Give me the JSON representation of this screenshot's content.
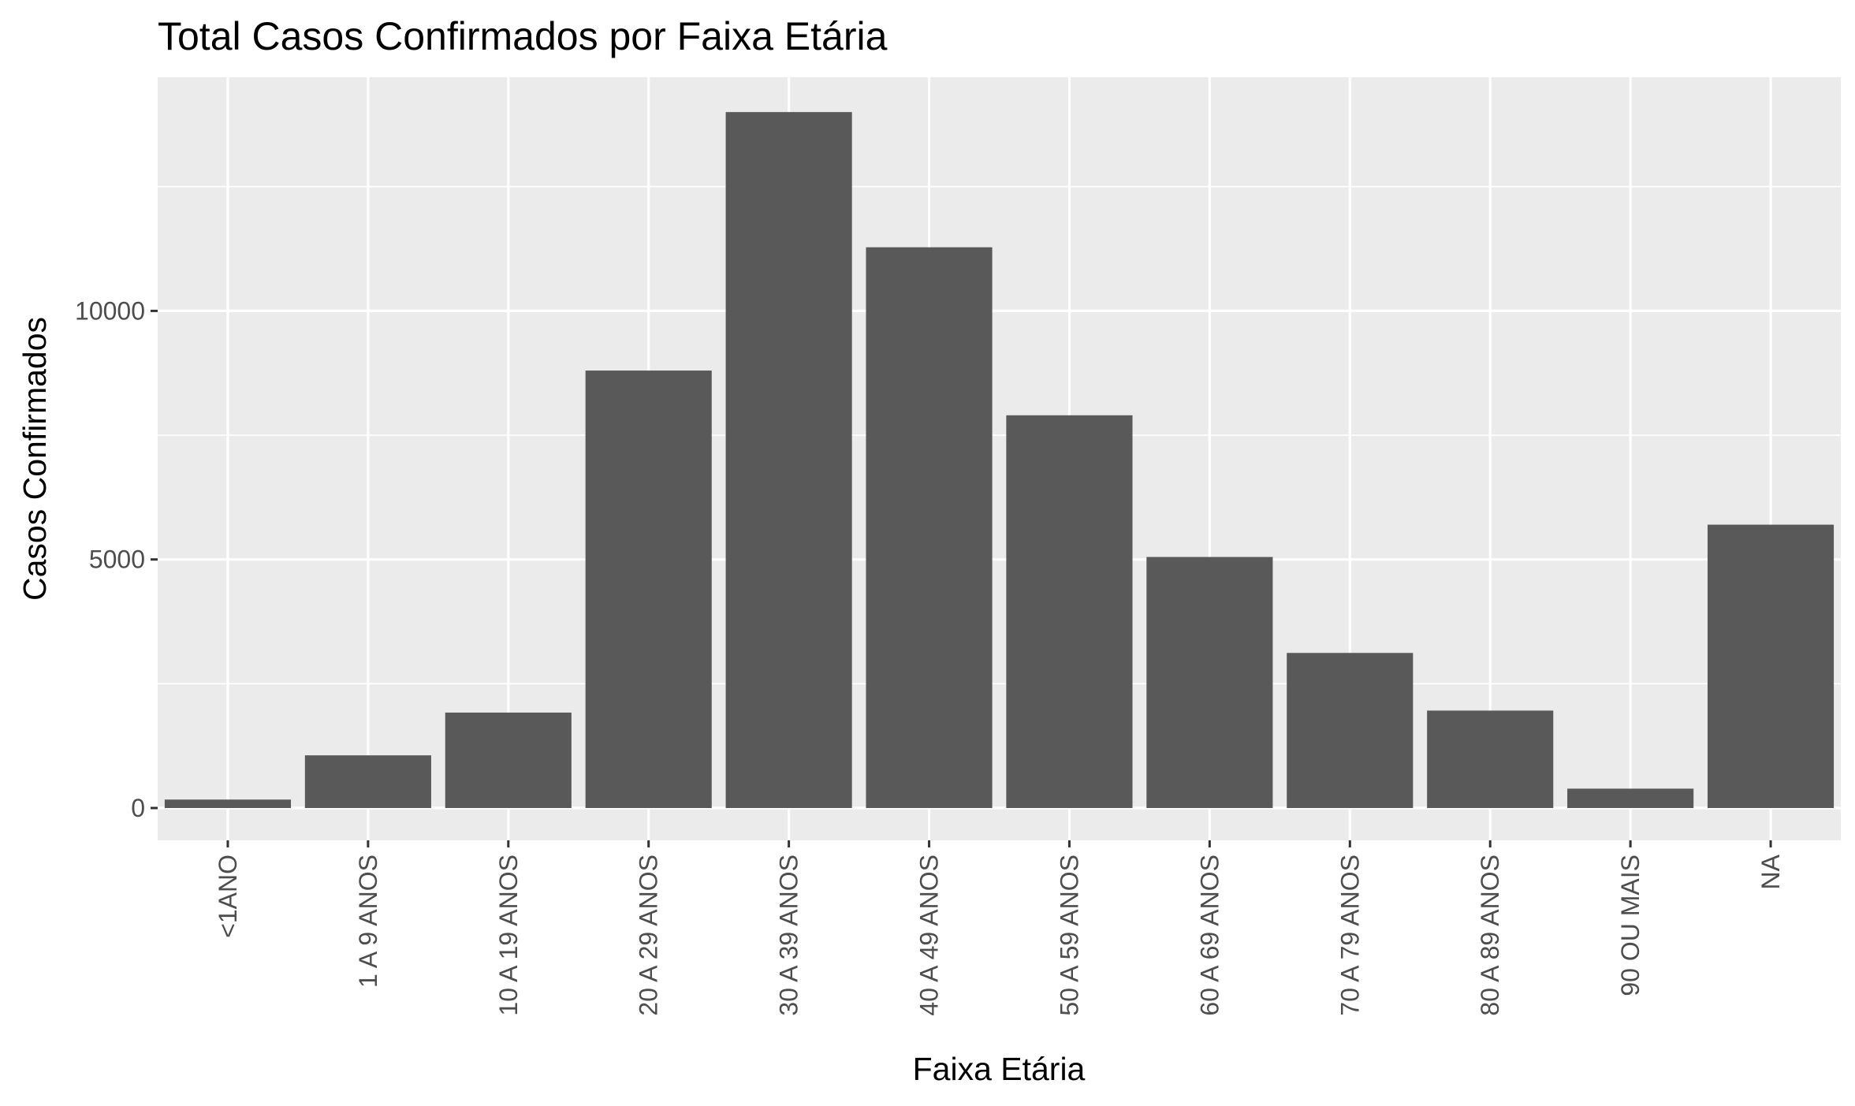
{
  "chart_data": {
    "type": "bar",
    "title": "Total Casos Confirmados por Faixa Etária",
    "xlabel": "Faixa Etária",
    "ylabel": "Casos Confirmados",
    "categories": [
      "<1ANO",
      "1 A 9 ANOS",
      "10 A 19 ANOS",
      "20 A 29 ANOS",
      "30 A 39 ANOS",
      "40 A 49 ANOS",
      "50 A 59 ANOS",
      "60 A 69 ANOS",
      "70 A 79 ANOS",
      "80 A 89 ANOS",
      "90 OU MAIS",
      "NA"
    ],
    "values": [
      170,
      1060,
      1920,
      8800,
      14000,
      11280,
      7900,
      5050,
      3120,
      1960,
      390,
      5700
    ],
    "ylim": [
      -650,
      14700
    ],
    "yticks": [
      {
        "value": 0,
        "label": "0"
      },
      {
        "value": 5000,
        "label": "5000"
      },
      {
        "value": 10000,
        "label": "10000"
      }
    ],
    "y_minor_ticks": [
      2500,
      7500,
      12500
    ],
    "grid": true,
    "colors": {
      "panel": "#ebebeb",
      "grid": "#ffffff",
      "bar": "#595959",
      "tick_text": "#4d4d4d",
      "tick_mark": "#333333"
    }
  }
}
